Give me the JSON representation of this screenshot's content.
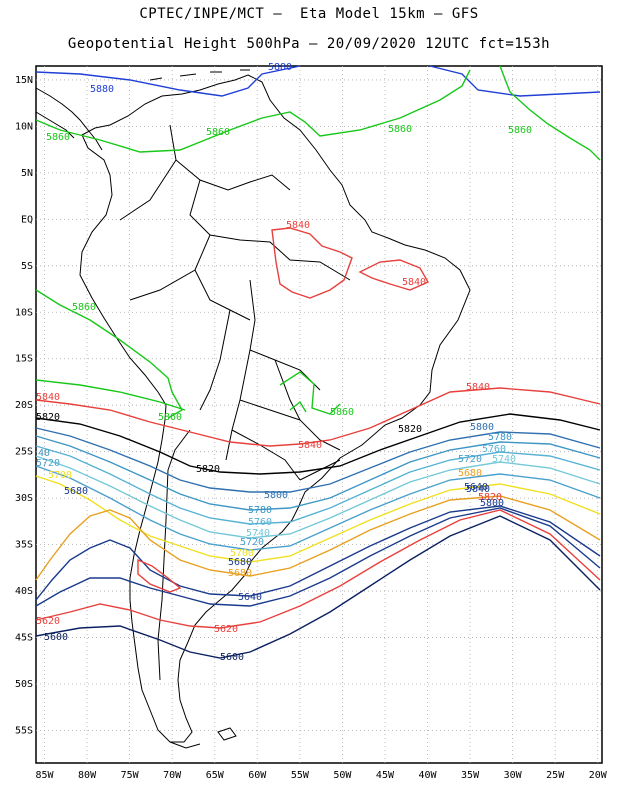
{
  "title_line1": "CPTEC/INPE/MCT –  Eta Model 15km – GFS",
  "title_line2": "Geopotential Height 500hPa – 20/09/2020 12UTC fct=153h",
  "lat_labels": [
    "15N",
    "10N",
    "5N",
    "EQ",
    "5S",
    "10S",
    "15S",
    "20S",
    "25S",
    "30S",
    "35S",
    "40S",
    "45S",
    "50S",
    "55S"
  ],
  "lon_labels": [
    "85W",
    "80W",
    "75W",
    "70W",
    "65W",
    "60W",
    "55W",
    "50W",
    "45W",
    "40W",
    "35W",
    "30W",
    "25W",
    "20W"
  ],
  "colors": {
    "c5880": "#1f3fd6",
    "c5860": "#18c818",
    "c5840": "#e8403c",
    "c5820": "#000000",
    "c5800": "#2f70b0",
    "c5780": "#3c96c4",
    "c5760": "#56b2d4",
    "c5740": "#74c8d8",
    "c5720": "#4aa0cc",
    "c5700": "#f0e020",
    "c5680": "#e8a020",
    "c5640": "#1a3a8c",
    "c5600": "#0a2060",
    "coast": "#000000",
    "grid": "#aaaaaa"
  },
  "contour_labels": {
    "l5880a": "5880",
    "l5880b": "5880",
    "l5860a": "5860",
    "l5860b": "5860",
    "l5860c": "5860",
    "l5860d": "5860",
    "l5860e": "5860",
    "l5860f": "5860",
    "l5840a": "5840",
    "l5840b": "5840",
    "l5840c": "5840",
    "l5840d": "5840",
    "l5840e": "5840",
    "l5840f": "5840",
    "l5820a": "5820",
    "l5820b": "5820",
    "l5820c": "5820",
    "l5820d": "5820",
    "l5800a": "5800",
    "l5800b": "5800",
    "l5800c": "5800",
    "l5780a": "5780",
    "l5780b": "5780",
    "l5780c": "5780",
    "l5760a": "5760",
    "l5760b": "5760",
    "l5740a": "5740",
    "l5740b": "5740",
    "l5720a": "5720",
    "l5720b": "5720",
    "l5720c": "5720",
    "l5700a": "5700",
    "l5700b": "5700",
    "l5680a": "5680",
    "l5680b": "5680",
    "l5680c": "5680",
    "l5680d": "5680",
    "l5660a": "5660",
    "l5640a": "5640",
    "l5640b": "5640",
    "l5620a": "5620",
    "l5620b": "5620",
    "l5620c": "5620",
    "l5600a": "5600",
    "l5600b": "5600",
    "l40": "40"
  }
}
